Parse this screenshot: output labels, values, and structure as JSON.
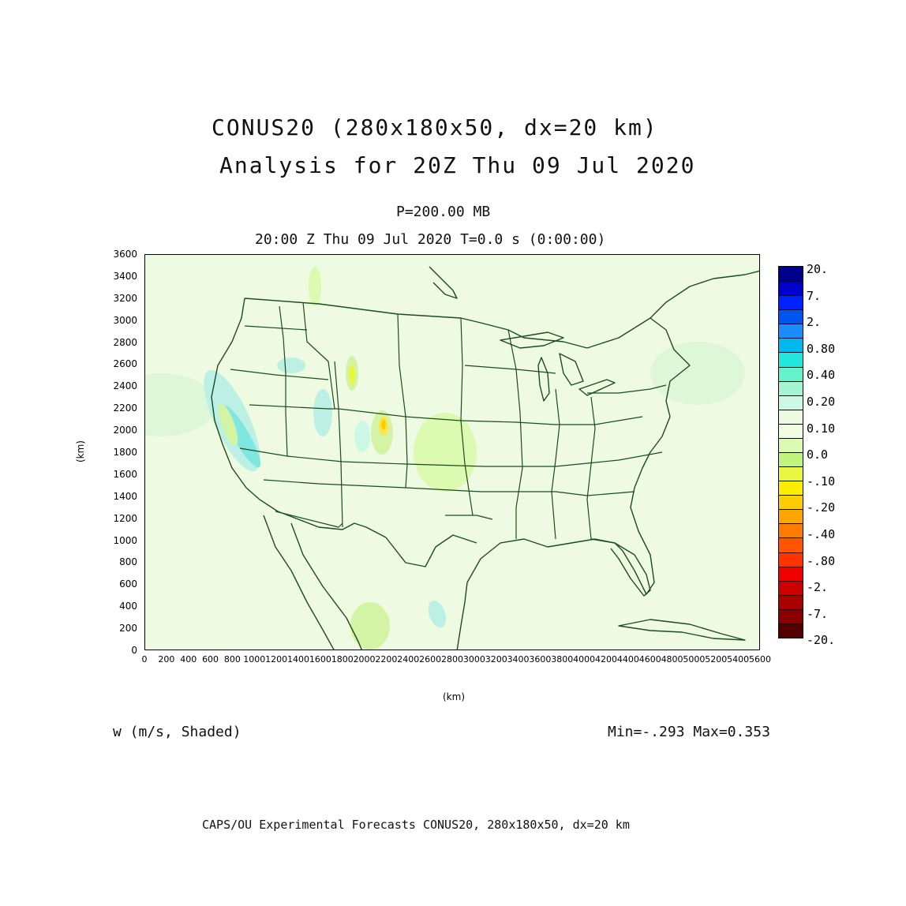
{
  "header": {
    "title_line1": "CONUS20 (280x180x50, dx=20 km)",
    "title_line2": "Analysis for 20Z Thu 09 Jul 2020",
    "level": "P=200.00 MB",
    "valid_time": "20:00 Z Thu 09 Jul 2020   T=0.0 s (0:00:00)"
  },
  "axes": {
    "xlabel": "(km)",
    "ylabel": "(km)",
    "x_ticks": [
      "0",
      "200",
      "400",
      "600",
      "800",
      "1000",
      "1200",
      "1400",
      "1600",
      "1800",
      "2000",
      "2200",
      "2400",
      "2600",
      "2800",
      "3000",
      "3200",
      "3400",
      "3600",
      "3800",
      "4000",
      "4200",
      "4400",
      "4600",
      "4800",
      "5000",
      "5200",
      "5400",
      "5600"
    ],
    "y_ticks": [
      "0",
      "200",
      "400",
      "600",
      "800",
      "1000",
      "1200",
      "1400",
      "1600",
      "1800",
      "2000",
      "2200",
      "2400",
      "2600",
      "2800",
      "3000",
      "3200",
      "3400",
      "3600"
    ],
    "xlim": [
      0,
      5600
    ],
    "ylim": [
      0,
      3600
    ]
  },
  "field": {
    "variable": "w (m/s, Shaded)",
    "minmax": "Min=-.293 Max=0.353"
  },
  "colorbar": {
    "labels": [
      "20.",
      "7.",
      "2.",
      "0.80",
      "0.40",
      "0.20",
      "0.10",
      "0.0",
      "-.10",
      "-.20",
      "-.40",
      "-.80",
      "-2.",
      "-7.",
      "-20."
    ],
    "colors": [
      "#00008b",
      "#0000cd",
      "#0022ff",
      "#0055ee",
      "#1a8cff",
      "#00b8ee",
      "#22e8dd",
      "#66f2c8",
      "#a5f5d5",
      "#ccf8e6",
      "#ecfbe2",
      "#f0fde2",
      "#dcfab0",
      "#bef57e",
      "#eaf540",
      "#fdee00",
      "#ffcc00",
      "#ffa500",
      "#ff7b00",
      "#ff5500",
      "#ff3300",
      "#ee0000",
      "#cc0000",
      "#aa0000",
      "#880000",
      "#550000"
    ]
  },
  "footer": {
    "credit": "CAPS/OU Experimental Forecasts  CONUS20, 280x180x50, dx=20 km"
  },
  "map_style": {
    "background_color": "#eefbe2",
    "boundary_color": "#1b4d1b",
    "positive_color": "#bdf0e4",
    "negative_color": "#d3f4a4",
    "strong_negative_color": "#fde54a",
    "strong_positive_color": "#7fe6e0"
  }
}
